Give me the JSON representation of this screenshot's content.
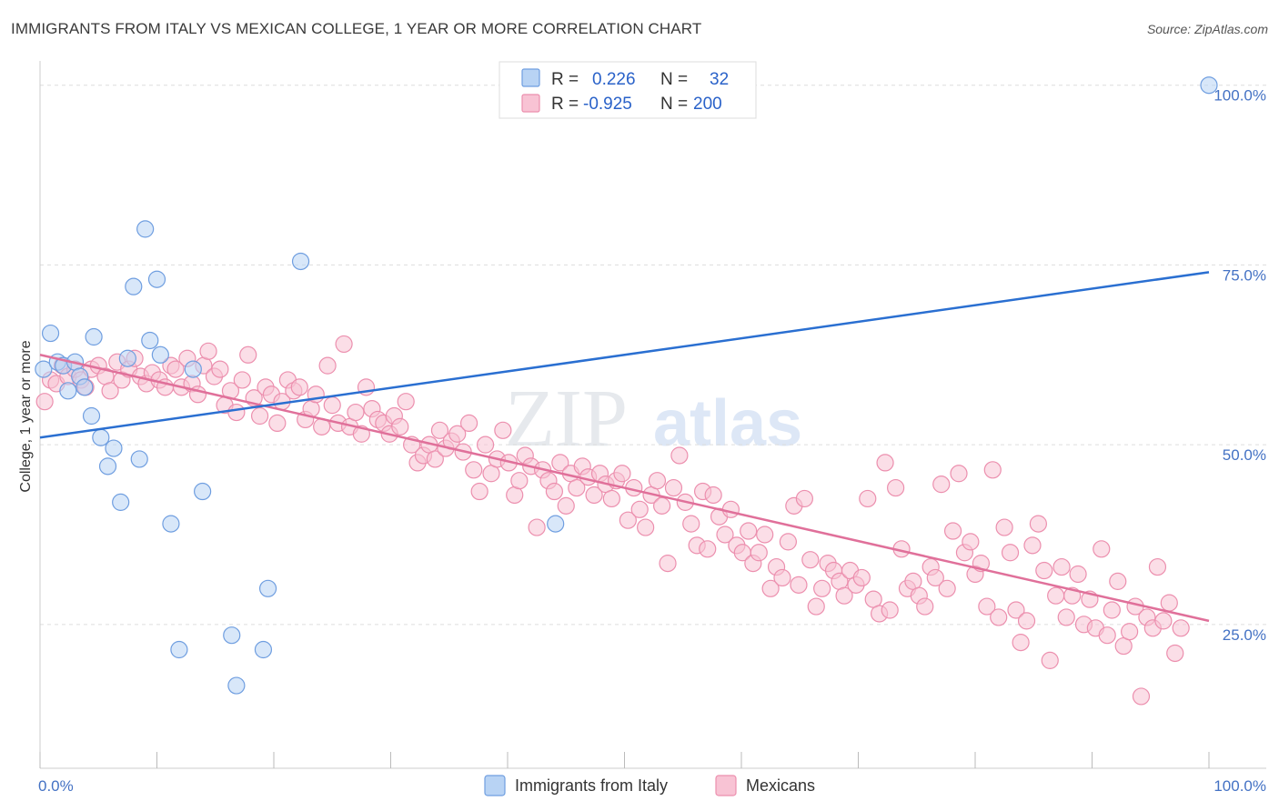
{
  "header": {
    "title": "IMMIGRANTS FROM ITALY VS MEXICAN COLLEGE, 1 YEAR OR MORE CORRELATION CHART",
    "source": "Source: ZipAtlas.com"
  },
  "watermark": {
    "zip": "ZIP",
    "atlas": "atlas"
  },
  "colors": {
    "italy_fill": "#b8d3f4",
    "italy_stroke": "#6f9ee0",
    "italy_line": "#2a6fd1",
    "mex_fill": "#f8c3d4",
    "mex_stroke": "#ec8fae",
    "mex_line": "#e0709a",
    "grid": "#dddddd",
    "axis_label": "#4472c4"
  },
  "legend": {
    "rows": [
      {
        "r_label": "R =",
        "r_value": "0.226",
        "n_label": "N =",
        "n_value": "32"
      },
      {
        "r_label": "R =",
        "r_value": "-0.925",
        "n_label": "N =",
        "n_value": "200"
      }
    ]
  },
  "chart_data": {
    "type": "scatter",
    "title": "IMMIGRANTS FROM ITALY VS MEXICAN COLLEGE, 1 YEAR OR MORE CORRELATION CHART",
    "xlabel": "",
    "ylabel": "College, 1 year or more",
    "x_tick_labels": [
      "0.0%",
      "100.0%"
    ],
    "y_tick_labels": [
      "100.0%",
      "75.0%",
      "50.0%",
      "25.0%"
    ],
    "y_ticks": [
      100,
      75,
      50,
      25
    ],
    "xlim": [
      0,
      100
    ],
    "ylim": [
      5,
      103
    ],
    "grid": true,
    "legend_position": "bottom",
    "series": [
      {
        "name": "Immigrants from Italy",
        "R": 0.226,
        "N": 32,
        "trend": {
          "x": [
            0,
            100
          ],
          "y": [
            51.0,
            74.0
          ]
        },
        "points": [
          [
            0.3,
            60.5
          ],
          [
            0.9,
            65.5
          ],
          [
            1.5,
            61.5
          ],
          [
            2.0,
            61.0
          ],
          [
            2.4,
            57.5
          ],
          [
            3.0,
            61.5
          ],
          [
            3.4,
            59.5
          ],
          [
            3.8,
            58.0
          ],
          [
            4.4,
            54.0
          ],
          [
            4.6,
            65.0
          ],
          [
            5.2,
            51.0
          ],
          [
            5.8,
            47.0
          ],
          [
            6.3,
            49.5
          ],
          [
            6.9,
            42.0
          ],
          [
            7.5,
            62.0
          ],
          [
            8.0,
            72.0
          ],
          [
            8.5,
            48.0
          ],
          [
            9.0,
            80.0
          ],
          [
            9.4,
            64.5
          ],
          [
            10.0,
            73.0
          ],
          [
            10.3,
            62.5
          ],
          [
            11.2,
            39.0
          ],
          [
            11.9,
            21.5
          ],
          [
            13.1,
            60.5
          ],
          [
            13.9,
            43.5
          ],
          [
            16.4,
            23.5
          ],
          [
            16.8,
            16.5
          ],
          [
            19.1,
            21.5
          ],
          [
            19.5,
            30.0
          ],
          [
            22.3,
            75.5
          ],
          [
            44.1,
            39.0
          ],
          [
            100.0,
            100.0
          ]
        ]
      },
      {
        "name": "Mexicans",
        "R": -0.925,
        "N": 200,
        "trend": {
          "x": [
            0,
            100
          ],
          "y": [
            62.5,
            25.5
          ]
        },
        "points": [
          [
            0.4,
            56.0
          ],
          [
            0.9,
            59.0
          ],
          [
            1.4,
            58.5
          ],
          [
            1.9,
            61.0
          ],
          [
            2.4,
            59.5
          ],
          [
            3.0,
            60.5
          ],
          [
            3.5,
            59.0
          ],
          [
            3.9,
            58.0
          ],
          [
            4.4,
            60.5
          ],
          [
            5.0,
            61.0
          ],
          [
            5.6,
            59.5
          ],
          [
            6.0,
            57.5
          ],
          [
            6.6,
            61.5
          ],
          [
            7.0,
            59.0
          ],
          [
            7.6,
            60.5
          ],
          [
            8.1,
            62.0
          ],
          [
            8.6,
            59.5
          ],
          [
            9.1,
            58.5
          ],
          [
            9.6,
            60.0
          ],
          [
            10.2,
            59.0
          ],
          [
            10.7,
            58.0
          ],
          [
            11.2,
            61.0
          ],
          [
            11.6,
            60.5
          ],
          [
            12.1,
            58.0
          ],
          [
            12.6,
            62.0
          ],
          [
            13.0,
            58.5
          ],
          [
            13.5,
            57.0
          ],
          [
            14.0,
            61.0
          ],
          [
            14.4,
            63.0
          ],
          [
            14.9,
            59.5
          ],
          [
            15.4,
            60.5
          ],
          [
            15.8,
            55.5
          ],
          [
            16.3,
            57.5
          ],
          [
            16.8,
            54.5
          ],
          [
            17.3,
            59.0
          ],
          [
            17.8,
            62.5
          ],
          [
            18.3,
            56.5
          ],
          [
            18.8,
            54.0
          ],
          [
            19.3,
            58.0
          ],
          [
            19.8,
            57.0
          ],
          [
            20.3,
            53.0
          ],
          [
            20.7,
            56.0
          ],
          [
            21.2,
            59.0
          ],
          [
            21.7,
            57.5
          ],
          [
            22.2,
            58.0
          ],
          [
            22.7,
            53.5
          ],
          [
            23.2,
            55.0
          ],
          [
            23.6,
            57.0
          ],
          [
            24.1,
            52.5
          ],
          [
            24.6,
            61.0
          ],
          [
            25.0,
            55.5
          ],
          [
            25.5,
            53.0
          ],
          [
            26.0,
            64.0
          ],
          [
            26.5,
            52.5
          ],
          [
            27.0,
            54.5
          ],
          [
            27.5,
            51.5
          ],
          [
            27.9,
            58.0
          ],
          [
            28.4,
            55.0
          ],
          [
            28.9,
            53.5
          ],
          [
            29.4,
            53.0
          ],
          [
            29.9,
            51.5
          ],
          [
            30.3,
            54.0
          ],
          [
            30.8,
            52.5
          ],
          [
            31.3,
            56.0
          ],
          [
            31.8,
            50.0
          ],
          [
            32.3,
            47.5
          ],
          [
            32.8,
            48.5
          ],
          [
            33.3,
            50.0
          ],
          [
            33.8,
            48.0
          ],
          [
            34.2,
            52.0
          ],
          [
            34.7,
            49.5
          ],
          [
            35.2,
            50.5
          ],
          [
            35.7,
            51.5
          ],
          [
            36.2,
            49.0
          ],
          [
            36.7,
            53.0
          ],
          [
            37.1,
            46.5
          ],
          [
            37.6,
            43.5
          ],
          [
            38.1,
            50.0
          ],
          [
            38.6,
            46.0
          ],
          [
            39.1,
            48.0
          ],
          [
            39.6,
            52.0
          ],
          [
            40.1,
            47.5
          ],
          [
            40.6,
            43.0
          ],
          [
            41.0,
            45.0
          ],
          [
            41.5,
            48.5
          ],
          [
            42.0,
            47.0
          ],
          [
            42.5,
            38.5
          ],
          [
            43.0,
            46.5
          ],
          [
            43.5,
            45.0
          ],
          [
            44.0,
            43.5
          ],
          [
            44.5,
            47.5
          ],
          [
            45.0,
            41.5
          ],
          [
            45.4,
            46.0
          ],
          [
            45.9,
            44.0
          ],
          [
            46.4,
            47.0
          ],
          [
            46.9,
            45.5
          ],
          [
            47.4,
            43.0
          ],
          [
            47.9,
            46.0
          ],
          [
            48.4,
            44.5
          ],
          [
            48.9,
            42.5
          ],
          [
            49.3,
            45.0
          ],
          [
            49.8,
            46.0
          ],
          [
            50.3,
            39.5
          ],
          [
            50.8,
            44.0
          ],
          [
            51.3,
            41.0
          ],
          [
            51.8,
            38.5
          ],
          [
            52.3,
            43.0
          ],
          [
            52.8,
            45.0
          ],
          [
            53.2,
            41.5
          ],
          [
            53.7,
            33.5
          ],
          [
            54.2,
            44.0
          ],
          [
            54.7,
            48.5
          ],
          [
            55.2,
            42.0
          ],
          [
            55.7,
            39.0
          ],
          [
            56.2,
            36.0
          ],
          [
            56.7,
            43.5
          ],
          [
            57.1,
            35.5
          ],
          [
            57.6,
            43.0
          ],
          [
            58.1,
            40.0
          ],
          [
            58.6,
            37.5
          ],
          [
            59.1,
            41.0
          ],
          [
            59.6,
            36.0
          ],
          [
            60.1,
            35.0
          ],
          [
            60.6,
            38.0
          ],
          [
            61.0,
            33.5
          ],
          [
            61.5,
            35.0
          ],
          [
            62.0,
            37.5
          ],
          [
            62.5,
            30.0
          ],
          [
            63.0,
            33.0
          ],
          [
            63.5,
            31.5
          ],
          [
            64.0,
            36.5
          ],
          [
            64.5,
            41.5
          ],
          [
            64.9,
            30.5
          ],
          [
            65.4,
            42.5
          ],
          [
            65.9,
            34.0
          ],
          [
            66.4,
            27.5
          ],
          [
            66.9,
            30.0
          ],
          [
            67.4,
            33.5
          ],
          [
            67.9,
            32.5
          ],
          [
            68.4,
            31.0
          ],
          [
            68.8,
            29.0
          ],
          [
            69.3,
            32.5
          ],
          [
            69.8,
            30.5
          ],
          [
            70.3,
            31.5
          ],
          [
            70.8,
            42.5
          ],
          [
            71.3,
            28.5
          ],
          [
            71.8,
            26.5
          ],
          [
            72.3,
            47.5
          ],
          [
            72.7,
            27.0
          ],
          [
            73.2,
            44.0
          ],
          [
            73.7,
            35.5
          ],
          [
            74.2,
            30.0
          ],
          [
            74.7,
            31.0
          ],
          [
            75.2,
            29.0
          ],
          [
            75.7,
            27.5
          ],
          [
            76.2,
            33.0
          ],
          [
            76.6,
            31.5
          ],
          [
            77.1,
            44.5
          ],
          [
            77.6,
            30.0
          ],
          [
            78.1,
            38.0
          ],
          [
            78.6,
            46.0
          ],
          [
            79.1,
            35.0
          ],
          [
            79.6,
            36.5
          ],
          [
            80.0,
            32.0
          ],
          [
            80.5,
            33.5
          ],
          [
            81.0,
            27.5
          ],
          [
            81.5,
            46.5
          ],
          [
            82.0,
            26.0
          ],
          [
            82.5,
            38.5
          ],
          [
            83.0,
            35.0
          ],
          [
            83.5,
            27.0
          ],
          [
            83.9,
            22.5
          ],
          [
            84.4,
            25.5
          ],
          [
            84.9,
            36.0
          ],
          [
            85.4,
            39.0
          ],
          [
            85.9,
            32.5
          ],
          [
            86.4,
            20.0
          ],
          [
            86.9,
            29.0
          ],
          [
            87.4,
            33.0
          ],
          [
            87.8,
            26.0
          ],
          [
            88.3,
            29.0
          ],
          [
            88.8,
            32.0
          ],
          [
            89.3,
            25.0
          ],
          [
            89.8,
            28.5
          ],
          [
            90.3,
            24.5
          ],
          [
            90.8,
            35.5
          ],
          [
            91.3,
            23.5
          ],
          [
            91.7,
            27.0
          ],
          [
            92.2,
            31.0
          ],
          [
            92.7,
            22.0
          ],
          [
            93.2,
            24.0
          ],
          [
            93.7,
            27.5
          ],
          [
            94.2,
            15.0
          ],
          [
            94.7,
            26.0
          ],
          [
            95.2,
            24.5
          ],
          [
            95.6,
            33.0
          ],
          [
            96.1,
            25.5
          ],
          [
            96.6,
            28.0
          ],
          [
            97.1,
            21.0
          ],
          [
            97.6,
            24.5
          ]
        ]
      }
    ]
  }
}
